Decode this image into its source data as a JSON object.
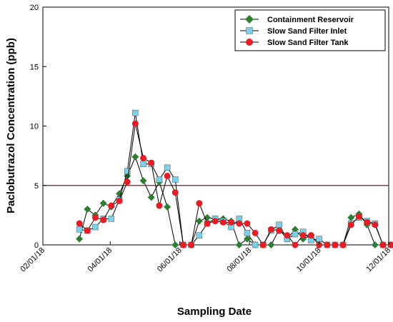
{
  "chart_data": {
    "type": "line",
    "title": "",
    "xlabel": "Sampling Date",
    "ylabel": "Paclobutrazol Concentration (ppb)",
    "xlim": [
      "2018-02-01",
      "2018-12-01"
    ],
    "ylim": [
      0,
      20
    ],
    "x_ticks": [
      "02/01/18",
      "04/01/18",
      "06/01/18",
      "08/01/18",
      "10/01/18",
      "12/01/18"
    ],
    "x_tick_dates": [
      "2018-02-01",
      "2018-04-01",
      "2018-06-01",
      "2018-08-01",
      "2018-10-01",
      "2018-12-01"
    ],
    "y_ticks": [
      0,
      5,
      10,
      15,
      20
    ],
    "reference_line": {
      "y": 5,
      "color": "#7a1f1f"
    },
    "grid": false,
    "legend_position": "top-right",
    "series": [
      {
        "name": "Containment Reservoir",
        "color": "#2e7d32",
        "marker": "diamond",
        "points": [
          [
            "2018-03-05",
            0.5
          ],
          [
            "2018-03-12",
            3.0
          ],
          [
            "2018-03-19",
            2.5
          ],
          [
            "2018-03-26",
            3.5
          ],
          [
            "2018-04-02",
            3.2
          ],
          [
            "2018-04-09",
            4.3
          ],
          [
            "2018-04-16",
            5.8
          ],
          [
            "2018-04-23",
            7.4
          ],
          [
            "2018-04-30",
            5.4
          ],
          [
            "2018-05-07",
            4.0
          ],
          [
            "2018-05-14",
            5.3
          ],
          [
            "2018-05-21",
            3.2
          ],
          [
            "2018-05-28",
            0.0
          ],
          [
            "2018-06-04",
            0.0
          ],
          [
            "2018-06-11",
            0.0
          ],
          [
            "2018-06-18",
            2.0
          ],
          [
            "2018-06-25",
            2.3
          ],
          [
            "2018-07-02",
            2.2
          ],
          [
            "2018-07-09",
            2.2
          ],
          [
            "2018-07-16",
            2.0
          ],
          [
            "2018-07-23",
            0.0
          ],
          [
            "2018-07-30",
            0.5
          ],
          [
            "2018-08-06",
            0.0
          ],
          [
            "2018-08-13",
            0.0
          ],
          [
            "2018-08-20",
            0.0
          ],
          [
            "2018-08-27",
            1.3
          ],
          [
            "2018-09-03",
            0.5
          ],
          [
            "2018-09-10",
            1.3
          ],
          [
            "2018-09-17",
            0.5
          ],
          [
            "2018-09-24",
            0.8
          ],
          [
            "2018-10-01",
            0.0
          ],
          [
            "2018-10-08",
            0.0
          ],
          [
            "2018-10-15",
            0.0
          ],
          [
            "2018-10-22",
            0.0
          ],
          [
            "2018-10-29",
            2.3
          ],
          [
            "2018-11-05",
            2.6
          ],
          [
            "2018-11-12",
            1.7
          ],
          [
            "2018-11-19",
            0.0
          ],
          [
            "2018-11-26",
            0.0
          ],
          [
            "2018-12-03",
            0.0
          ]
        ]
      },
      {
        "name": "Slow Sand Filter Inlet",
        "color": "#7ecfe8",
        "marker": "square",
        "points": [
          [
            "2018-03-05",
            1.3
          ],
          [
            "2018-03-12",
            1.2
          ],
          [
            "2018-03-19",
            1.5
          ],
          [
            "2018-03-26",
            2.2
          ],
          [
            "2018-04-02",
            2.2
          ],
          [
            "2018-04-09",
            3.8
          ],
          [
            "2018-04-16",
            6.2
          ],
          [
            "2018-04-23",
            11.1
          ],
          [
            "2018-04-30",
            6.8
          ],
          [
            "2018-05-07",
            6.8
          ],
          [
            "2018-05-14",
            5.5
          ],
          [
            "2018-05-21",
            6.5
          ],
          [
            "2018-05-28",
            5.5
          ],
          [
            "2018-06-04",
            0.0
          ],
          [
            "2018-06-11",
            0.0
          ],
          [
            "2018-06-18",
            0.8
          ],
          [
            "2018-06-25",
            1.8
          ],
          [
            "2018-07-02",
            2.2
          ],
          [
            "2018-07-09",
            2.0
          ],
          [
            "2018-07-16",
            1.5
          ],
          [
            "2018-07-23",
            2.2
          ],
          [
            "2018-07-30",
            1.0
          ],
          [
            "2018-08-06",
            0.0
          ],
          [
            "2018-08-13",
            0.0
          ],
          [
            "2018-08-20",
            1.2
          ],
          [
            "2018-08-27",
            1.7
          ],
          [
            "2018-09-03",
            0.5
          ],
          [
            "2018-09-10",
            0.9
          ],
          [
            "2018-09-17",
            1.1
          ],
          [
            "2018-09-24",
            0.4
          ],
          [
            "2018-10-01",
            0.5
          ],
          [
            "2018-10-08",
            0.0
          ],
          [
            "2018-10-15",
            0.0
          ],
          [
            "2018-10-22",
            0.0
          ],
          [
            "2018-10-29",
            1.8
          ],
          [
            "2018-11-05",
            2.3
          ],
          [
            "2018-11-12",
            2.0
          ],
          [
            "2018-11-19",
            1.8
          ],
          [
            "2018-11-26",
            0.0
          ],
          [
            "2018-12-03",
            0.0
          ]
        ]
      },
      {
        "name": "Slow Sand Filter Tank",
        "color": "#e41e26",
        "marker": "circle",
        "points": [
          [
            "2018-03-05",
            1.8
          ],
          [
            "2018-03-12",
            1.2
          ],
          [
            "2018-03-19",
            2.3
          ],
          [
            "2018-03-26",
            2.1
          ],
          [
            "2018-04-02",
            3.3
          ],
          [
            "2018-04-09",
            3.7
          ],
          [
            "2018-04-16",
            5.3
          ],
          [
            "2018-04-23",
            10.2
          ],
          [
            "2018-04-30",
            7.3
          ],
          [
            "2018-05-07",
            6.9
          ],
          [
            "2018-05-14",
            3.3
          ],
          [
            "2018-05-21",
            5.8
          ],
          [
            "2018-05-28",
            4.4
          ],
          [
            "2018-06-04",
            0.0
          ],
          [
            "2018-06-11",
            0.0
          ],
          [
            "2018-06-18",
            3.5
          ],
          [
            "2018-06-25",
            1.8
          ],
          [
            "2018-07-02",
            2.0
          ],
          [
            "2018-07-09",
            1.9
          ],
          [
            "2018-07-16",
            1.9
          ],
          [
            "2018-07-23",
            1.8
          ],
          [
            "2018-07-30",
            1.8
          ],
          [
            "2018-08-06",
            1.0
          ],
          [
            "2018-08-13",
            0.0
          ],
          [
            "2018-08-20",
            1.3
          ],
          [
            "2018-08-27",
            1.2
          ],
          [
            "2018-09-03",
            0.8
          ],
          [
            "2018-09-10",
            0.0
          ],
          [
            "2018-09-17",
            0.8
          ],
          [
            "2018-09-24",
            0.8
          ],
          [
            "2018-10-01",
            0.0
          ],
          [
            "2018-10-08",
            0.0
          ],
          [
            "2018-10-15",
            0.0
          ],
          [
            "2018-10-22",
            0.0
          ],
          [
            "2018-10-29",
            1.7
          ],
          [
            "2018-11-05",
            2.4
          ],
          [
            "2018-11-12",
            1.9
          ],
          [
            "2018-11-19",
            1.7
          ],
          [
            "2018-11-26",
            0.0
          ],
          [
            "2018-12-03",
            0.0
          ]
        ]
      }
    ]
  }
}
